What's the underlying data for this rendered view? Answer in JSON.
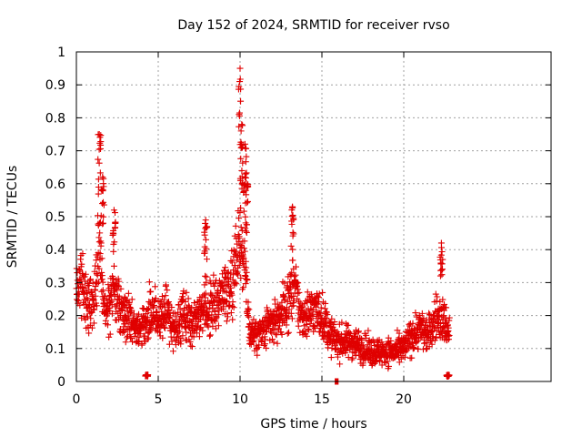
{
  "chart_data": {
    "type": "scatter",
    "title": "Day 152 of 2024, SRMTID for receiver rvso",
    "xlabel": "GPS time / hours",
    "ylabel": "SRMTID / TECUs",
    "xlim": [
      0,
      29
    ],
    "ylim": [
      0,
      1
    ],
    "grid": true,
    "marker": "+",
    "color": "#e00000",
    "x_ticks": [
      {
        "value": 0,
        "label": "0"
      },
      {
        "value": 5,
        "label": "5"
      },
      {
        "value": 10,
        "label": "10"
      },
      {
        "value": 15,
        "label": "15"
      },
      {
        "value": 20,
        "label": "20"
      }
    ],
    "y_ticks": [
      {
        "value": 0,
        "label": "0"
      },
      {
        "value": 0.1,
        "label": "0.1"
      },
      {
        "value": 0.2,
        "label": "0.2"
      },
      {
        "value": 0.3,
        "label": "0.3"
      },
      {
        "value": 0.4,
        "label": "0.4"
      },
      {
        "value": 0.5,
        "label": "0.5"
      },
      {
        "value": 0.6,
        "label": "0.6"
      },
      {
        "value": 0.7,
        "label": "0.7"
      },
      {
        "value": 0.8,
        "label": "0.8"
      },
      {
        "value": 0.9,
        "label": "0.9"
      },
      {
        "value": 1,
        "label": "1"
      }
    ],
    "trend": [
      [
        0,
        0.27
      ],
      [
        0.3,
        0.3
      ],
      [
        0.6,
        0.25
      ],
      [
        1.0,
        0.23
      ],
      [
        1.2,
        0.3
      ],
      [
        1.4,
        0.45
      ],
      [
        1.6,
        0.3
      ],
      [
        1.8,
        0.2
      ],
      [
        2.2,
        0.3
      ],
      [
        2.5,
        0.25
      ],
      [
        3.0,
        0.2
      ],
      [
        3.5,
        0.18
      ],
      [
        4.0,
        0.16
      ],
      [
        4.5,
        0.2
      ],
      [
        5.0,
        0.2
      ],
      [
        5.5,
        0.22
      ],
      [
        6.0,
        0.15
      ],
      [
        6.5,
        0.2
      ],
      [
        7.0,
        0.18
      ],
      [
        7.5,
        0.22
      ],
      [
        8.0,
        0.22
      ],
      [
        8.5,
        0.24
      ],
      [
        9.0,
        0.28
      ],
      [
        9.5,
        0.3
      ],
      [
        10.0,
        0.45
      ],
      [
        10.3,
        0.35
      ],
      [
        10.6,
        0.15
      ],
      [
        11.0,
        0.14
      ],
      [
        11.5,
        0.15
      ],
      [
        12.0,
        0.18
      ],
      [
        12.5,
        0.2
      ],
      [
        13.0,
        0.25
      ],
      [
        13.3,
        0.3
      ],
      [
        13.7,
        0.2
      ],
      [
        14.0,
        0.2
      ],
      [
        14.5,
        0.22
      ],
      [
        15.0,
        0.2
      ],
      [
        15.5,
        0.14
      ],
      [
        16.0,
        0.12
      ],
      [
        16.5,
        0.12
      ],
      [
        17.0,
        0.12
      ],
      [
        17.5,
        0.1
      ],
      [
        18.0,
        0.09
      ],
      [
        18.5,
        0.09
      ],
      [
        19.0,
        0.09
      ],
      [
        19.5,
        0.09
      ],
      [
        20.0,
        0.1
      ],
      [
        20.5,
        0.14
      ],
      [
        21.0,
        0.16
      ],
      [
        21.5,
        0.14
      ],
      [
        22.0,
        0.2
      ],
      [
        22.5,
        0.18
      ],
      [
        22.8,
        0.15
      ]
    ],
    "spikes": [
      {
        "x": 1.4,
        "y": 0.75
      },
      {
        "x": 1.6,
        "y": 0.62
      },
      {
        "x": 2.3,
        "y": 0.52
      },
      {
        "x": 7.9,
        "y": 0.49
      },
      {
        "x": 10.0,
        "y": 0.95
      },
      {
        "x": 10.1,
        "y": 0.78
      },
      {
        "x": 10.3,
        "y": 0.72
      },
      {
        "x": 10.4,
        "y": 0.6
      },
      {
        "x": 13.2,
        "y": 0.53
      },
      {
        "x": 22.3,
        "y": 0.42
      },
      {
        "x": 15.9,
        "y": 0.0
      },
      {
        "x": 22.7,
        "y": 0.02
      },
      {
        "x": 4.3,
        "y": 0.02
      }
    ]
  }
}
